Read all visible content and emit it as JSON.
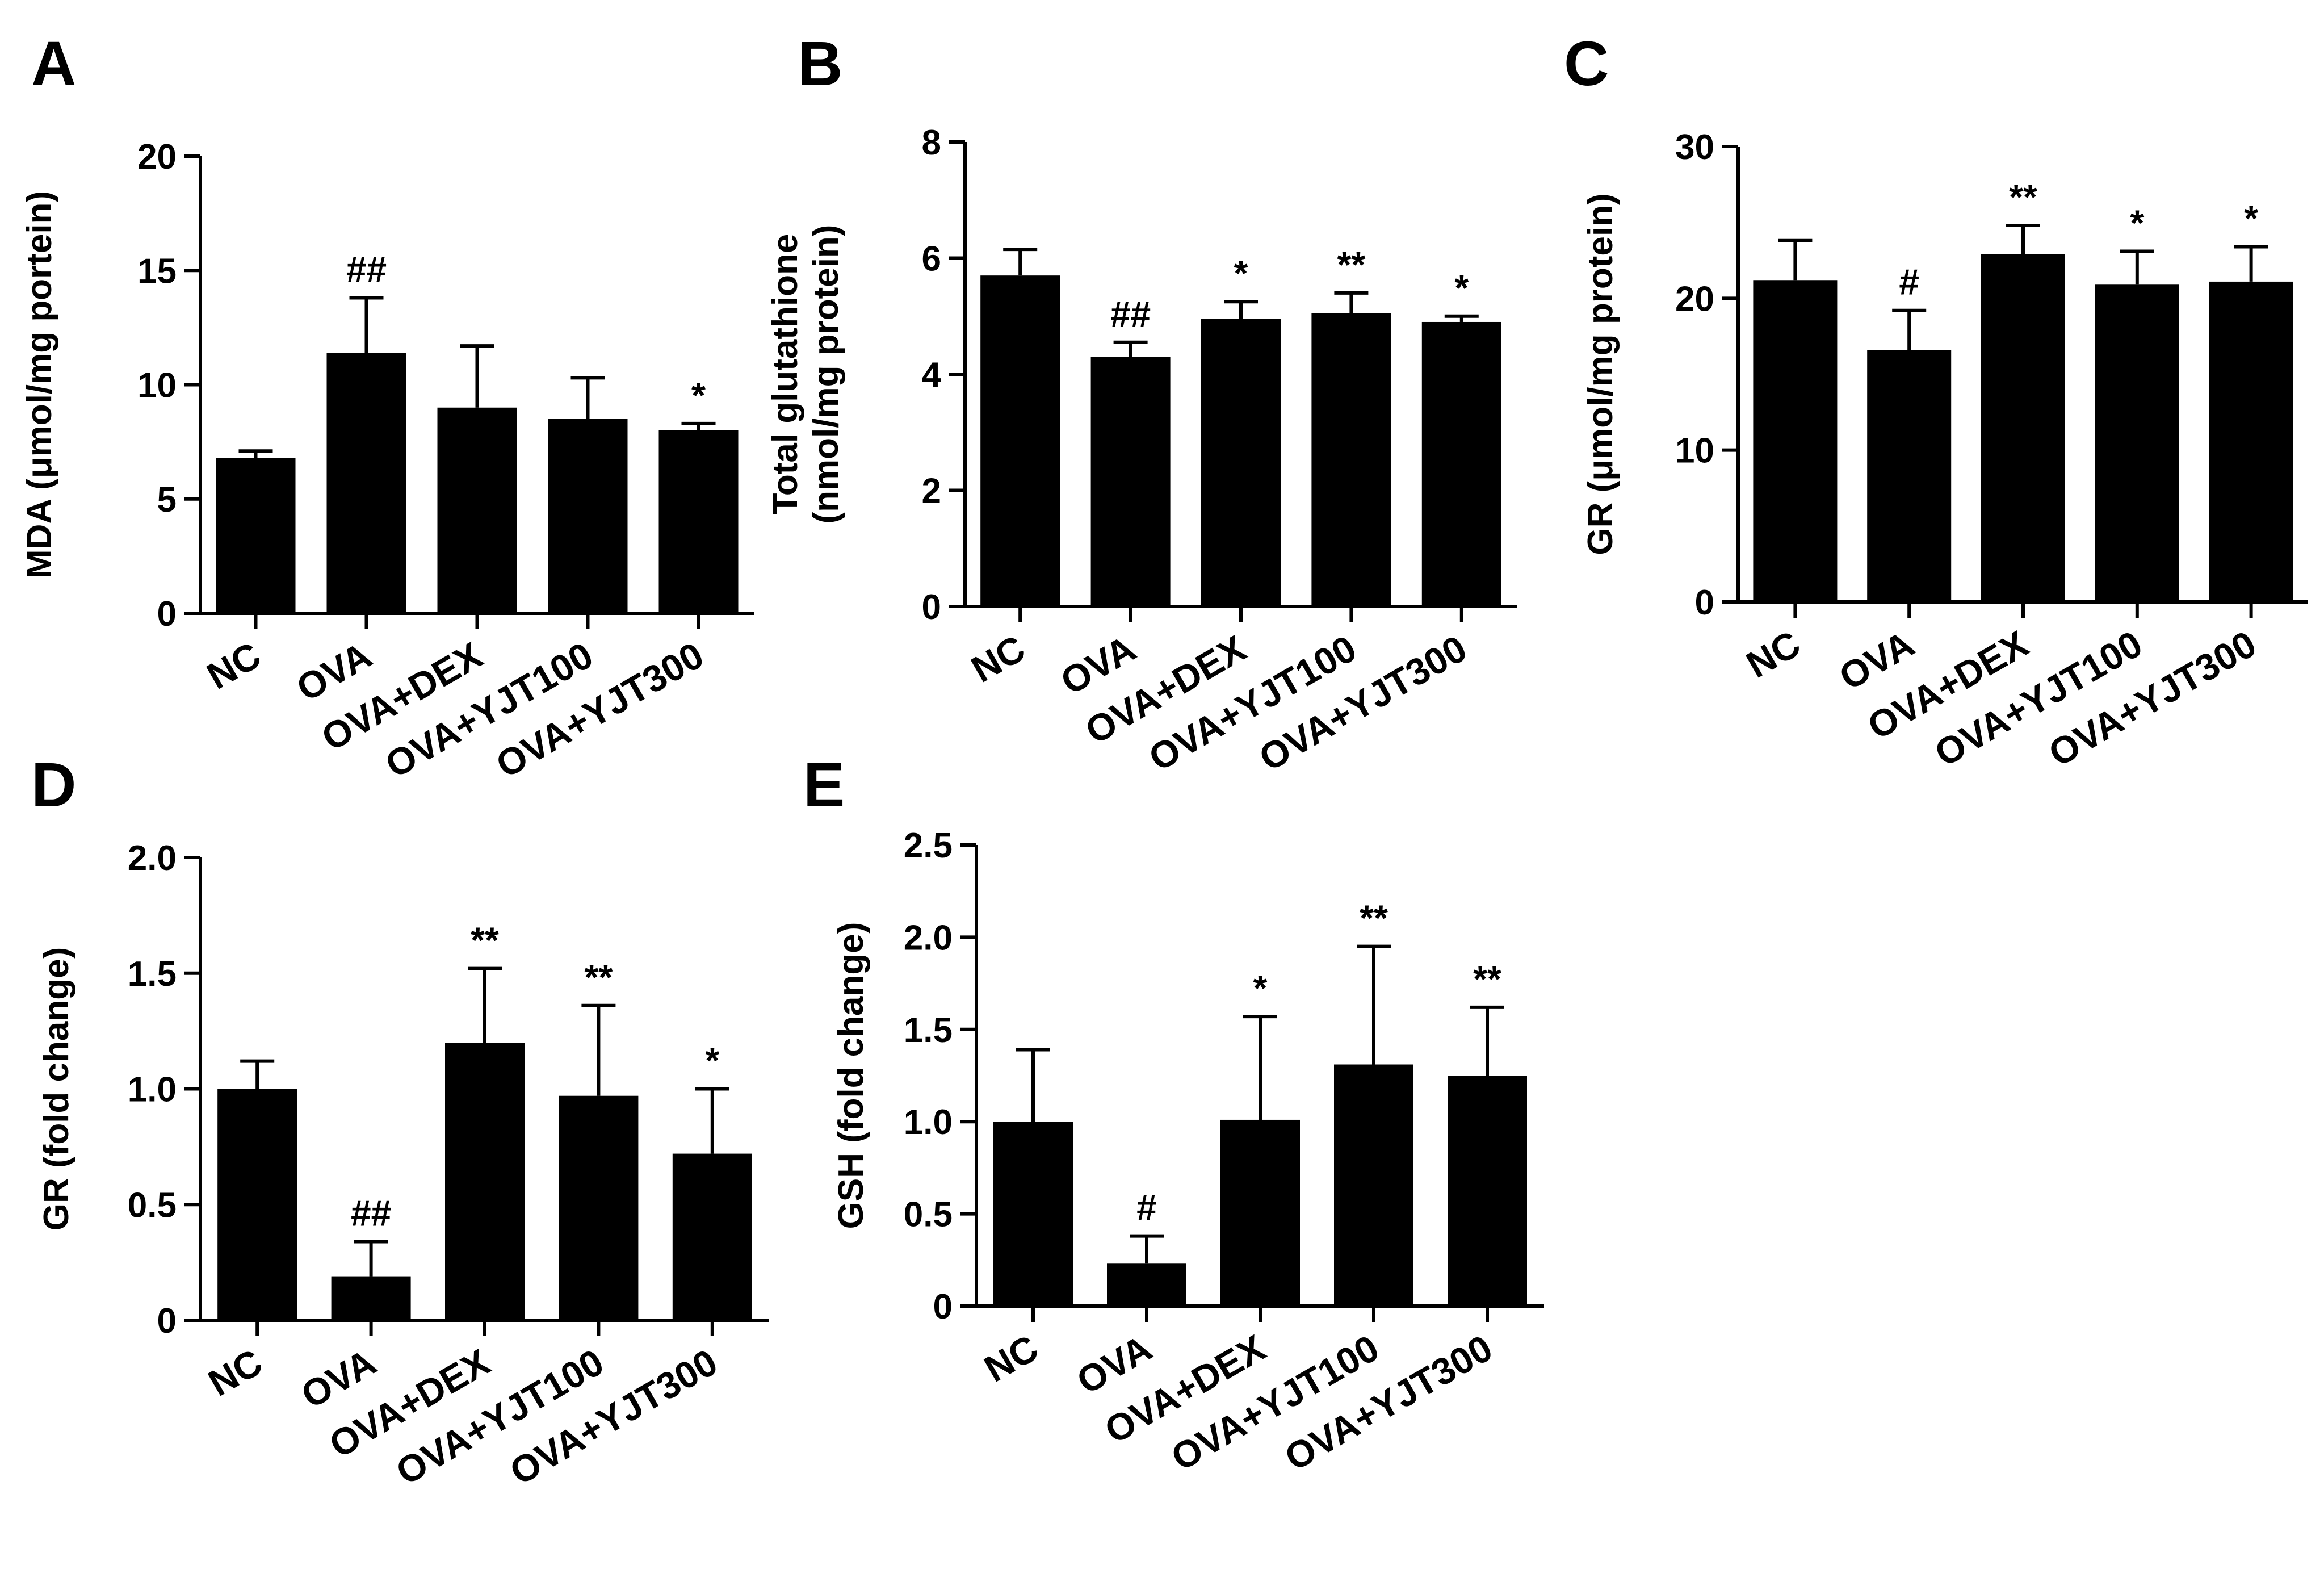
{
  "figure": {
    "colors": {
      "bar": "#000000",
      "axis": "#000000",
      "background": "#ffffff"
    }
  },
  "chart_data": [
    {
      "id": "A",
      "letter": "A",
      "type": "bar",
      "categories": [
        "NC",
        "OVA",
        "OVA+DEX",
        "OVA+YJT100",
        "OVA+YJT300"
      ],
      "values": [
        6.8,
        11.4,
        9.0,
        8.5,
        8.0
      ],
      "errors": [
        0.3,
        2.4,
        2.7,
        1.8,
        0.3
      ],
      "annotations": [
        "",
        "##",
        "",
        "",
        "*"
      ],
      "ylabel_lines": [
        "MDA (μmol/mg portein)"
      ],
      "ylim": [
        0,
        20
      ],
      "yticks": [
        0,
        5,
        10,
        15,
        20
      ],
      "ytick_labels": [
        "0",
        "5",
        "10",
        "15",
        "20"
      ]
    },
    {
      "id": "B",
      "letter": "B",
      "type": "bar",
      "categories": [
        "NC",
        "OVA",
        "OVA+DEX",
        "OVA+YJT100",
        "OVA+YJT300"
      ],
      "values": [
        5.7,
        4.3,
        4.95,
        5.05,
        4.9
      ],
      "errors": [
        0.45,
        0.25,
        0.3,
        0.35,
        0.1
      ],
      "annotations": [
        "",
        "##",
        "*",
        "**",
        "*"
      ],
      "ylabel_lines": [
        "Total glutathione",
        "(nmol/mg protein)"
      ],
      "ylim": [
        0,
        8
      ],
      "yticks": [
        0,
        2,
        4,
        6,
        8
      ],
      "ytick_labels": [
        "0",
        "2",
        "4",
        "6",
        "8"
      ]
    },
    {
      "id": "C",
      "letter": "C",
      "type": "bar",
      "categories": [
        "NC",
        "OVA",
        "OVA+DEX",
        "OVA+YJT100",
        "OVA+YJT300"
      ],
      "values": [
        21.2,
        16.6,
        22.9,
        20.9,
        21.1
      ],
      "errors": [
        2.6,
        2.6,
        1.9,
        2.2,
        2.3
      ],
      "annotations": [
        "",
        "#",
        "**",
        "*",
        "*"
      ],
      "ylabel_lines": [
        "GR (μmol/mg protein)"
      ],
      "ylim": [
        0,
        30
      ],
      "yticks": [
        0,
        10,
        20,
        30
      ],
      "ytick_labels": [
        "0",
        "10",
        "20",
        "30"
      ]
    },
    {
      "id": "D",
      "letter": "D",
      "type": "bar",
      "categories": [
        "NC",
        "OVA",
        "OVA+DEX",
        "OVA+YJT100",
        "OVA+YJT300"
      ],
      "values": [
        1.0,
        0.19,
        1.2,
        0.97,
        0.72
      ],
      "errors": [
        0.12,
        0.15,
        0.32,
        0.39,
        0.28
      ],
      "annotations": [
        "",
        "##",
        "**",
        "**",
        "*"
      ],
      "ylabel_lines": [
        "GR (fold change)"
      ],
      "ylim": [
        0,
        2.0
      ],
      "yticks": [
        0,
        0.5,
        1.0,
        1.5,
        2.0
      ],
      "ytick_labels": [
        "0",
        "0.5",
        "1.0",
        "1.5",
        "2.0"
      ]
    },
    {
      "id": "E",
      "letter": "E",
      "type": "bar",
      "categories": [
        "NC",
        "OVA",
        "OVA+DEX",
        "OVA+YJT100",
        "OVA+YJT300"
      ],
      "values": [
        1.0,
        0.23,
        1.01,
        1.31,
        1.25
      ],
      "errors": [
        0.39,
        0.15,
        0.56,
        0.64,
        0.37
      ],
      "annotations": [
        "",
        "#",
        "*",
        "**",
        "**"
      ],
      "ylabel_lines": [
        "GSH (fold change)"
      ],
      "ylim": [
        0,
        2.5
      ],
      "yticks": [
        0,
        0.5,
        1.0,
        1.5,
        2.0,
        2.5
      ],
      "ytick_labels": [
        "0",
        "0.5",
        "1.0",
        "1.5",
        "2.0",
        "2.5"
      ]
    }
  ]
}
